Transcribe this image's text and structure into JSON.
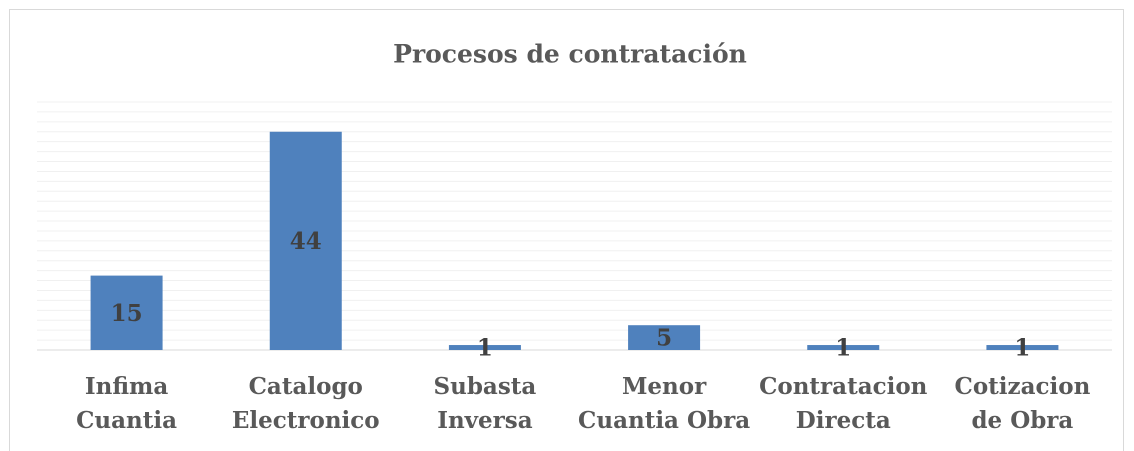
{
  "chart_data": {
    "type": "bar",
    "title": "Procesos de contratación",
    "categories": [
      [
        "Infima",
        "Cuantia"
      ],
      [
        "Catalogo",
        "Electronico"
      ],
      [
        "Subasta",
        "Inversa"
      ],
      [
        "Menor",
        "Cuantia Obra"
      ],
      [
        "Contratacion",
        "Directa"
      ],
      [
        "Cotizacion",
        "de Obra"
      ]
    ],
    "values": [
      15,
      44,
      1,
      5,
      1,
      1
    ],
    "color": "#4f81bd",
    "ylim": [
      0,
      50
    ],
    "yticks": [
      0,
      2,
      4,
      6,
      8,
      10,
      12,
      14,
      16,
      18,
      20,
      22,
      24,
      26,
      28,
      30,
      32,
      34,
      36,
      38,
      40,
      42,
      44,
      46,
      48,
      50
    ],
    "grid": true
  }
}
